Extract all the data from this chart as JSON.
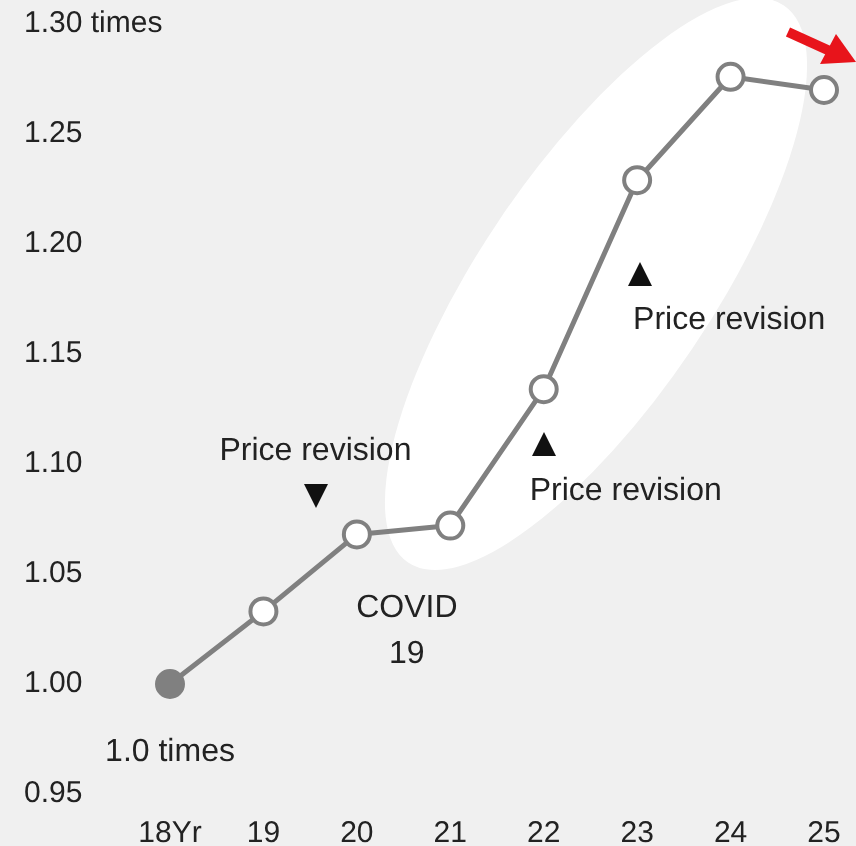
{
  "chart_data": {
    "type": "line",
    "categories": [
      "18Yr",
      "19",
      "20",
      "21",
      "22",
      "23",
      "24",
      "25"
    ],
    "values": [
      1.0,
      1.033,
      1.068,
      1.072,
      1.134,
      1.229,
      1.276,
      1.27
    ],
    "color": "#808080",
    "marker": "circle",
    "ylim": [
      0.95,
      1.3
    ],
    "yticks": [
      {
        "value": 0.95,
        "label": "0.95"
      },
      {
        "value": 1.0,
        "label": "1.00"
      },
      {
        "value": 1.05,
        "label": "1.05"
      },
      {
        "value": 1.1,
        "label": "1.10"
      },
      {
        "value": 1.15,
        "label": "1.15"
      },
      {
        "value": 1.2,
        "label": "1.20"
      },
      {
        "value": 1.25,
        "label": "1.25"
      },
      {
        "value": 1.3,
        "label": "1.30 times"
      }
    ],
    "annotations": [
      "1.0 times",
      "Price revision",
      "COVID\n19",
      "Price revision",
      "Price revision"
    ]
  }
}
